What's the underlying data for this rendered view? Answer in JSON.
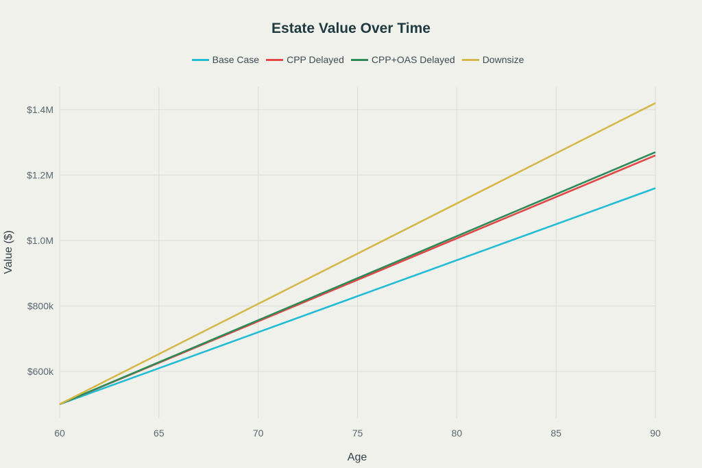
{
  "chart_data": {
    "type": "line",
    "title": "Estate Value Over Time",
    "xlabel": "Age",
    "ylabel": "Value ($)",
    "xlim": [
      60,
      90
    ],
    "ylim": [
      458000,
      1469000
    ],
    "grid": true,
    "legend_position": "top",
    "x_ticks": [
      60,
      65,
      70,
      75,
      80,
      85,
      90
    ],
    "x_tick_labels": [
      "60",
      "65",
      "70",
      "75",
      "80",
      "85",
      "90"
    ],
    "y_ticks": [
      600000,
      800000,
      1000000,
      1200000,
      1400000
    ],
    "y_tick_labels": [
      "$600k",
      "$800k",
      "$1.0M",
      "$1.2M",
      "$1.4M"
    ],
    "x": [
      60,
      90
    ],
    "series": [
      {
        "name": "Base Case",
        "color": "#22bcd4",
        "values": [
          500000,
          1160000
        ]
      },
      {
        "name": "CPP Delayed",
        "color": "#e04848",
        "values": [
          500000,
          1260000
        ]
      },
      {
        "name": "CPP+OAS Delayed",
        "color": "#2e8b57",
        "values": [
          500000,
          1270000
        ]
      },
      {
        "name": "Downsize",
        "color": "#d4b84a",
        "values": [
          500000,
          1420000
        ]
      }
    ]
  }
}
